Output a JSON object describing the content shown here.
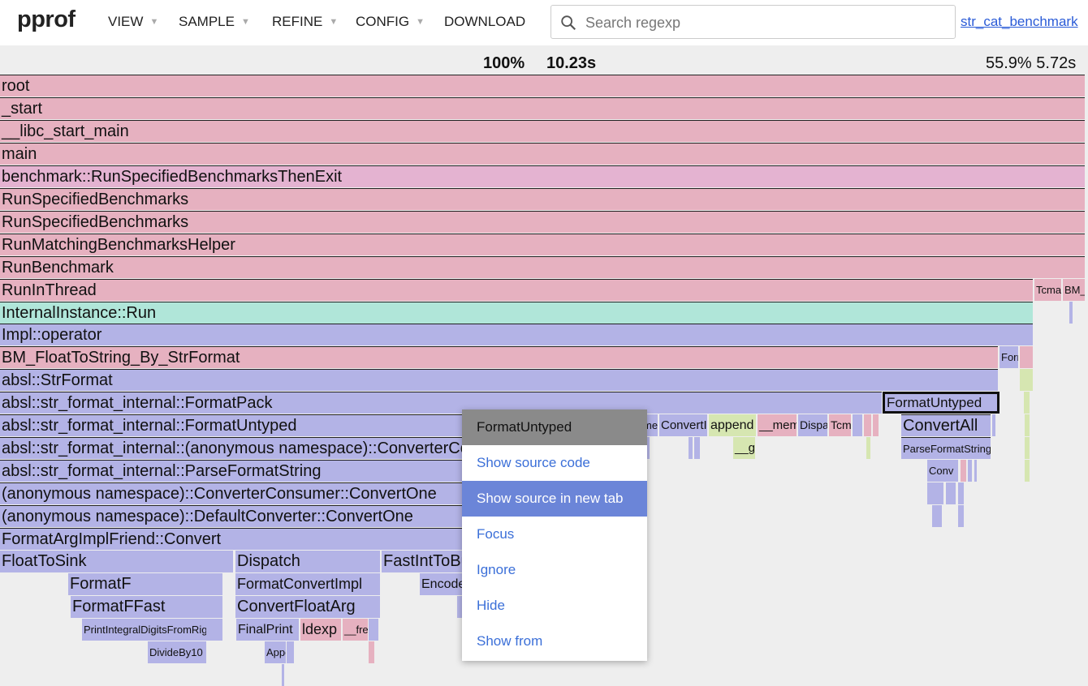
{
  "app": {
    "logo": "pprof"
  },
  "menu": [
    {
      "label": "VIEW",
      "dropdown": true
    },
    {
      "label": "SAMPLE",
      "dropdown": true
    },
    {
      "label": "REFINE",
      "dropdown": true
    },
    {
      "label": "CONFIG",
      "dropdown": true
    },
    {
      "label": "DOWNLOAD",
      "dropdown": false
    }
  ],
  "search": {
    "placeholder": "Search regexp",
    "value": "",
    "icon": "search-icon"
  },
  "profile_link": "str_cat_benchmark",
  "stats": {
    "total_percent": "100%",
    "total_time": "10.23s",
    "hover": "55.9% 5.72s"
  },
  "colors": {
    "pink": "#e6b1c0",
    "lavender": "#b3b3e6",
    "teal": "#b0e6d9",
    "green": "#d6e6b1",
    "mauve": "#e4b3d1",
    "menu_highlight": "#6b85d8",
    "link": "#2a5bd7"
  },
  "frames": [
    {
      "label": "root",
      "color": "pink"
    },
    {
      "label": "_start",
      "color": "pink"
    },
    {
      "label": "__libc_start_main",
      "color": "pink"
    },
    {
      "label": "main",
      "color": "pink"
    },
    {
      "label": "benchmark::RunSpecifiedBenchmarksThenExit",
      "color": "mauve"
    },
    {
      "label": "RunSpecifiedBenchmarks",
      "color": "pink"
    },
    {
      "label": "RunSpecifiedBenchmarks",
      "color": "pink"
    },
    {
      "label": "RunMatchingBenchmarksHelper",
      "color": "pink"
    },
    {
      "label": "RunBenchmark",
      "color": "pink"
    },
    {
      "label": "RunInThread",
      "color": "pink"
    },
    {
      "label": "Tcmalloc",
      "color": "pink"
    },
    {
      "label": "BM_",
      "color": "pink"
    },
    {
      "label": "InternalInstance::Run",
      "color": "teal"
    },
    {
      "label": "",
      "color": "lavender"
    },
    {
      "label": "Impl::operator",
      "color": "lavender"
    },
    {
      "label": "BM_FloatToString_By_StrFormat",
      "color": "pink"
    },
    {
      "label": "FormatArg",
      "color": "lavender"
    },
    {
      "label": "",
      "color": "pink"
    },
    {
      "label": "absl::StrFormat",
      "color": "lavender"
    },
    {
      "label": "",
      "color": "green"
    },
    {
      "label": "absl::str_format_internal::FormatPack",
      "color": "lavender"
    },
    {
      "label": "FormatUntyped",
      "color": "lavender",
      "selected": true
    },
    {
      "label": "",
      "color": "green"
    },
    {
      "label": "absl::str_format_internal::FormatUntyped",
      "color": "lavender"
    },
    {
      "label": "memcpy",
      "color": "lavender"
    },
    {
      "label": "ConvertInt",
      "color": "lavender"
    },
    {
      "label": "append",
      "color": "green"
    },
    {
      "label": "__memcpy",
      "color": "pink"
    },
    {
      "label": "Dispatch",
      "color": "lavender"
    },
    {
      "label": "Tcmalloc",
      "color": "pink"
    },
    {
      "label": "",
      "color": "lavender"
    },
    {
      "label": "",
      "color": "pink"
    },
    {
      "label": "",
      "color": "pink"
    },
    {
      "label": "ConvertAll",
      "color": "lavender"
    },
    {
      "label": "",
      "color": "lavender"
    },
    {
      "label": "",
      "color": "green"
    },
    {
      "label": "absl::str_format_internal::(anonymous namespace)::ConverterConsumer",
      "color": "lavender"
    },
    {
      "label": "",
      "color": "lavender"
    },
    {
      "label": "",
      "color": "lavender"
    },
    {
      "label": "",
      "color": "lavender"
    },
    {
      "label": "__g",
      "color": "green"
    },
    {
      "label": "",
      "color": "green"
    },
    {
      "label": "ParseFormatString",
      "color": "lavender"
    },
    {
      "label": "",
      "color": "green"
    },
    {
      "label": "absl::str_format_internal::ParseFormatString",
      "color": "lavender"
    },
    {
      "label": "Conv",
      "color": "lavender"
    },
    {
      "label": "",
      "color": "pink"
    },
    {
      "label": "",
      "color": "lavender"
    },
    {
      "label": "",
      "color": "lavender"
    },
    {
      "label": "",
      "color": "green"
    },
    {
      "label": "(anonymous namespace)::ConverterConsumer::ConvertOne",
      "color": "lavender"
    },
    {
      "label": "",
      "color": "lavender"
    },
    {
      "label": "",
      "color": "lavender"
    },
    {
      "label": "",
      "color": "lavender"
    },
    {
      "label": "(anonymous namespace)::DefaultConverter::ConvertOne",
      "color": "lavender"
    },
    {
      "label": "",
      "color": "lavender"
    },
    {
      "label": "",
      "color": "lavender"
    },
    {
      "label": "FormatArgImplFriend::Convert",
      "color": "lavender"
    },
    {
      "label": "FloatToSink",
      "color": "lavender"
    },
    {
      "label": "Dispatch",
      "color": "lavender"
    },
    {
      "label": "FastIntToBuffer",
      "color": "lavender"
    },
    {
      "label": "FormatF",
      "color": "lavender"
    },
    {
      "label": "FormatConvertImpl",
      "color": "lavender"
    },
    {
      "label": "Encode",
      "color": "lavender"
    },
    {
      "label": "FormatFFast",
      "color": "lavender"
    },
    {
      "label": "ConvertFloatArg",
      "color": "lavender"
    },
    {
      "label": "",
      "color": "lavender"
    },
    {
      "label": "PrintIntegralDigitsFromRightFast",
      "color": "lavender"
    },
    {
      "label": "",
      "color": "lavender"
    },
    {
      "label": "FinalPrint",
      "color": "lavender"
    },
    {
      "label": "ldexp",
      "color": "pink"
    },
    {
      "label": "__free",
      "color": "pink"
    },
    {
      "label": "",
      "color": "lavender"
    },
    {
      "label": "DivideBy10",
      "color": "lavender"
    },
    {
      "label": "Append",
      "color": "lavender"
    },
    {
      "label": "",
      "color": "lavender"
    },
    {
      "label": "",
      "color": "pink"
    },
    {
      "label": "",
      "color": "lavender"
    }
  ],
  "context_menu": {
    "title": "FormatUntyped",
    "items": [
      {
        "label": "Show source code",
        "highlighted": false
      },
      {
        "label": "Show source in new tab",
        "highlighted": true
      },
      {
        "label": "Focus",
        "highlighted": false
      },
      {
        "label": "Ignore",
        "highlighted": false
      },
      {
        "label": "Hide",
        "highlighted": false
      },
      {
        "label": "Show from",
        "highlighted": false
      }
    ]
  }
}
